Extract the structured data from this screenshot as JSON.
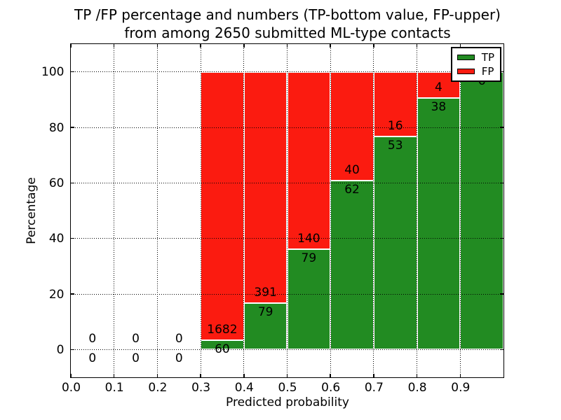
{
  "chart_data": {
    "type": "bar",
    "stacking": "percent",
    "title_line1": "TP /FP percentage and numbers (TP-bottom value, FP-upper)",
    "title_line2": "from among 2650 submitted ML-type contacts",
    "xlabel": "Predicted probability",
    "ylabel": "Percentage",
    "xlim": [
      0.0,
      1.0
    ],
    "ylim": [
      -10,
      110
    ],
    "grid": true,
    "xticks": [
      {
        "label": "0.0",
        "value": 0.0
      },
      {
        "label": "0.1",
        "value": 0.1
      },
      {
        "label": "0.2",
        "value": 0.2
      },
      {
        "label": "0.3",
        "value": 0.3
      },
      {
        "label": "0.4",
        "value": 0.4
      },
      {
        "label": "0.5",
        "value": 0.5
      },
      {
        "label": "0.6",
        "value": 0.6
      },
      {
        "label": "0.7",
        "value": 0.7
      },
      {
        "label": "0.8",
        "value": 0.8
      },
      {
        "label": "0.9",
        "value": 0.9
      }
    ],
    "yticks": [
      {
        "label": "0",
        "value": 0
      },
      {
        "label": "20",
        "value": 20
      },
      {
        "label": "40",
        "value": 40
      },
      {
        "label": "60",
        "value": 60
      },
      {
        "label": "80",
        "value": 80
      },
      {
        "label": "100",
        "value": 100
      }
    ],
    "bins": [
      {
        "range": [
          0.0,
          0.1
        ],
        "tp": 0,
        "fp": 0
      },
      {
        "range": [
          0.1,
          0.2
        ],
        "tp": 0,
        "fp": 0
      },
      {
        "range": [
          0.2,
          0.3
        ],
        "tp": 0,
        "fp": 0
      },
      {
        "range": [
          0.3,
          0.4
        ],
        "tp": 60,
        "fp": 1682
      },
      {
        "range": [
          0.4,
          0.5
        ],
        "tp": 79,
        "fp": 391
      },
      {
        "range": [
          0.5,
          0.6
        ],
        "tp": 79,
        "fp": 140
      },
      {
        "range": [
          0.6,
          0.7
        ],
        "tp": 62,
        "fp": 40
      },
      {
        "range": [
          0.7,
          0.8
        ],
        "tp": 53,
        "fp": 16
      },
      {
        "range": [
          0.8,
          0.9
        ],
        "tp": 38,
        "fp": 4
      },
      {
        "range": [
          0.9,
          1.0
        ],
        "tp": 6,
        "fp": 0
      }
    ],
    "colors": {
      "tp": "#228b22",
      "fp": "#fb1b10",
      "bar_edge": "#ffffff",
      "grid": "#000000"
    },
    "legend": {
      "position": "upper-right",
      "entries": [
        {
          "label": "TP",
          "color": "#228b22"
        },
        {
          "label": "FP",
          "color": "#fb1b10"
        }
      ]
    }
  }
}
